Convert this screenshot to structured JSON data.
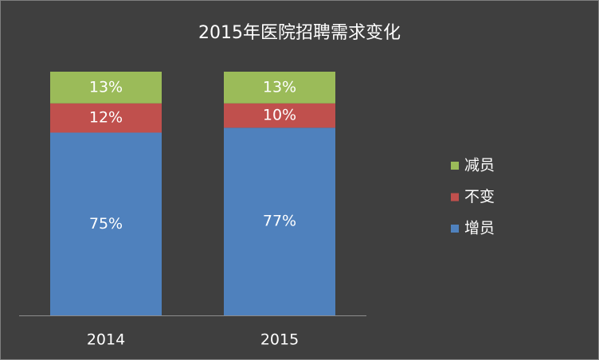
{
  "chart_data": {
    "type": "stacked-bar",
    "title": "2015年医院招聘需求变化",
    "categories": [
      "2014",
      "2015"
    ],
    "series": [
      {
        "name": "增员",
        "color": "#4f81bd",
        "values": [
          75,
          77
        ],
        "value_labels": [
          "75%",
          "77%"
        ]
      },
      {
        "name": "不变",
        "color": "#c0504d",
        "values": [
          12,
          10
        ],
        "value_labels": [
          "12%",
          "10%"
        ]
      },
      {
        "name": "减员",
        "color": "#9bbb59",
        "values": [
          13,
          13
        ],
        "value_labels": [
          "13%",
          "13%"
        ]
      }
    ],
    "ylim": [
      0,
      100
    ],
    "legend": "right"
  }
}
